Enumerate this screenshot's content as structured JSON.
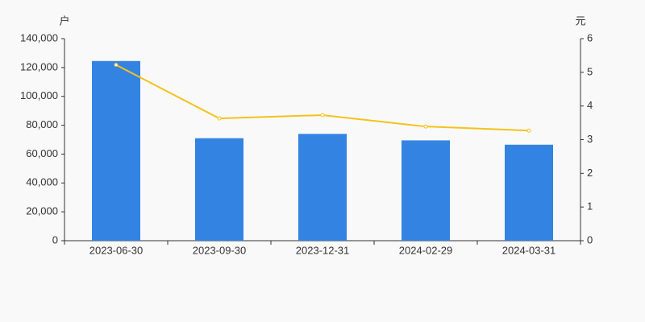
{
  "chart_data": {
    "type": "bar",
    "y_label": "户",
    "y2_label": "元",
    "categories": [
      "2023-06-30",
      "2023-09-30",
      "2023-12-31",
      "2024-02-29",
      "2024-03-31"
    ],
    "series": [
      {
        "type": "bar",
        "color": "#3383e3",
        "values": [
          124500,
          71000,
          74000,
          69500,
          66500
        ]
      },
      {
        "type": "line",
        "color": "#f5c21b",
        "axis": "y2",
        "values": [
          5.22,
          3.63,
          3.73,
          3.39,
          3.27
        ]
      }
    ],
    "ylim": [
      0,
      140000
    ],
    "yticks": [
      0,
      {
        "value": 20000,
        "label": "20,000"
      },
      {
        "value": 40000,
        "label": "40,000"
      },
      {
        "value": 60000,
        "label": "60,000"
      },
      {
        "value": 80000,
        "label": "80,000"
      },
      {
        "value": 100000,
        "label": "100,000"
      },
      {
        "value": 120000,
        "label": "120,000"
      },
      {
        "value": 140000,
        "label": "140,000"
      }
    ],
    "y2lim": [
      0,
      6
    ],
    "y2ticks": [
      0,
      1,
      2,
      3,
      4,
      5,
      6
    ],
    "grid": false
  }
}
